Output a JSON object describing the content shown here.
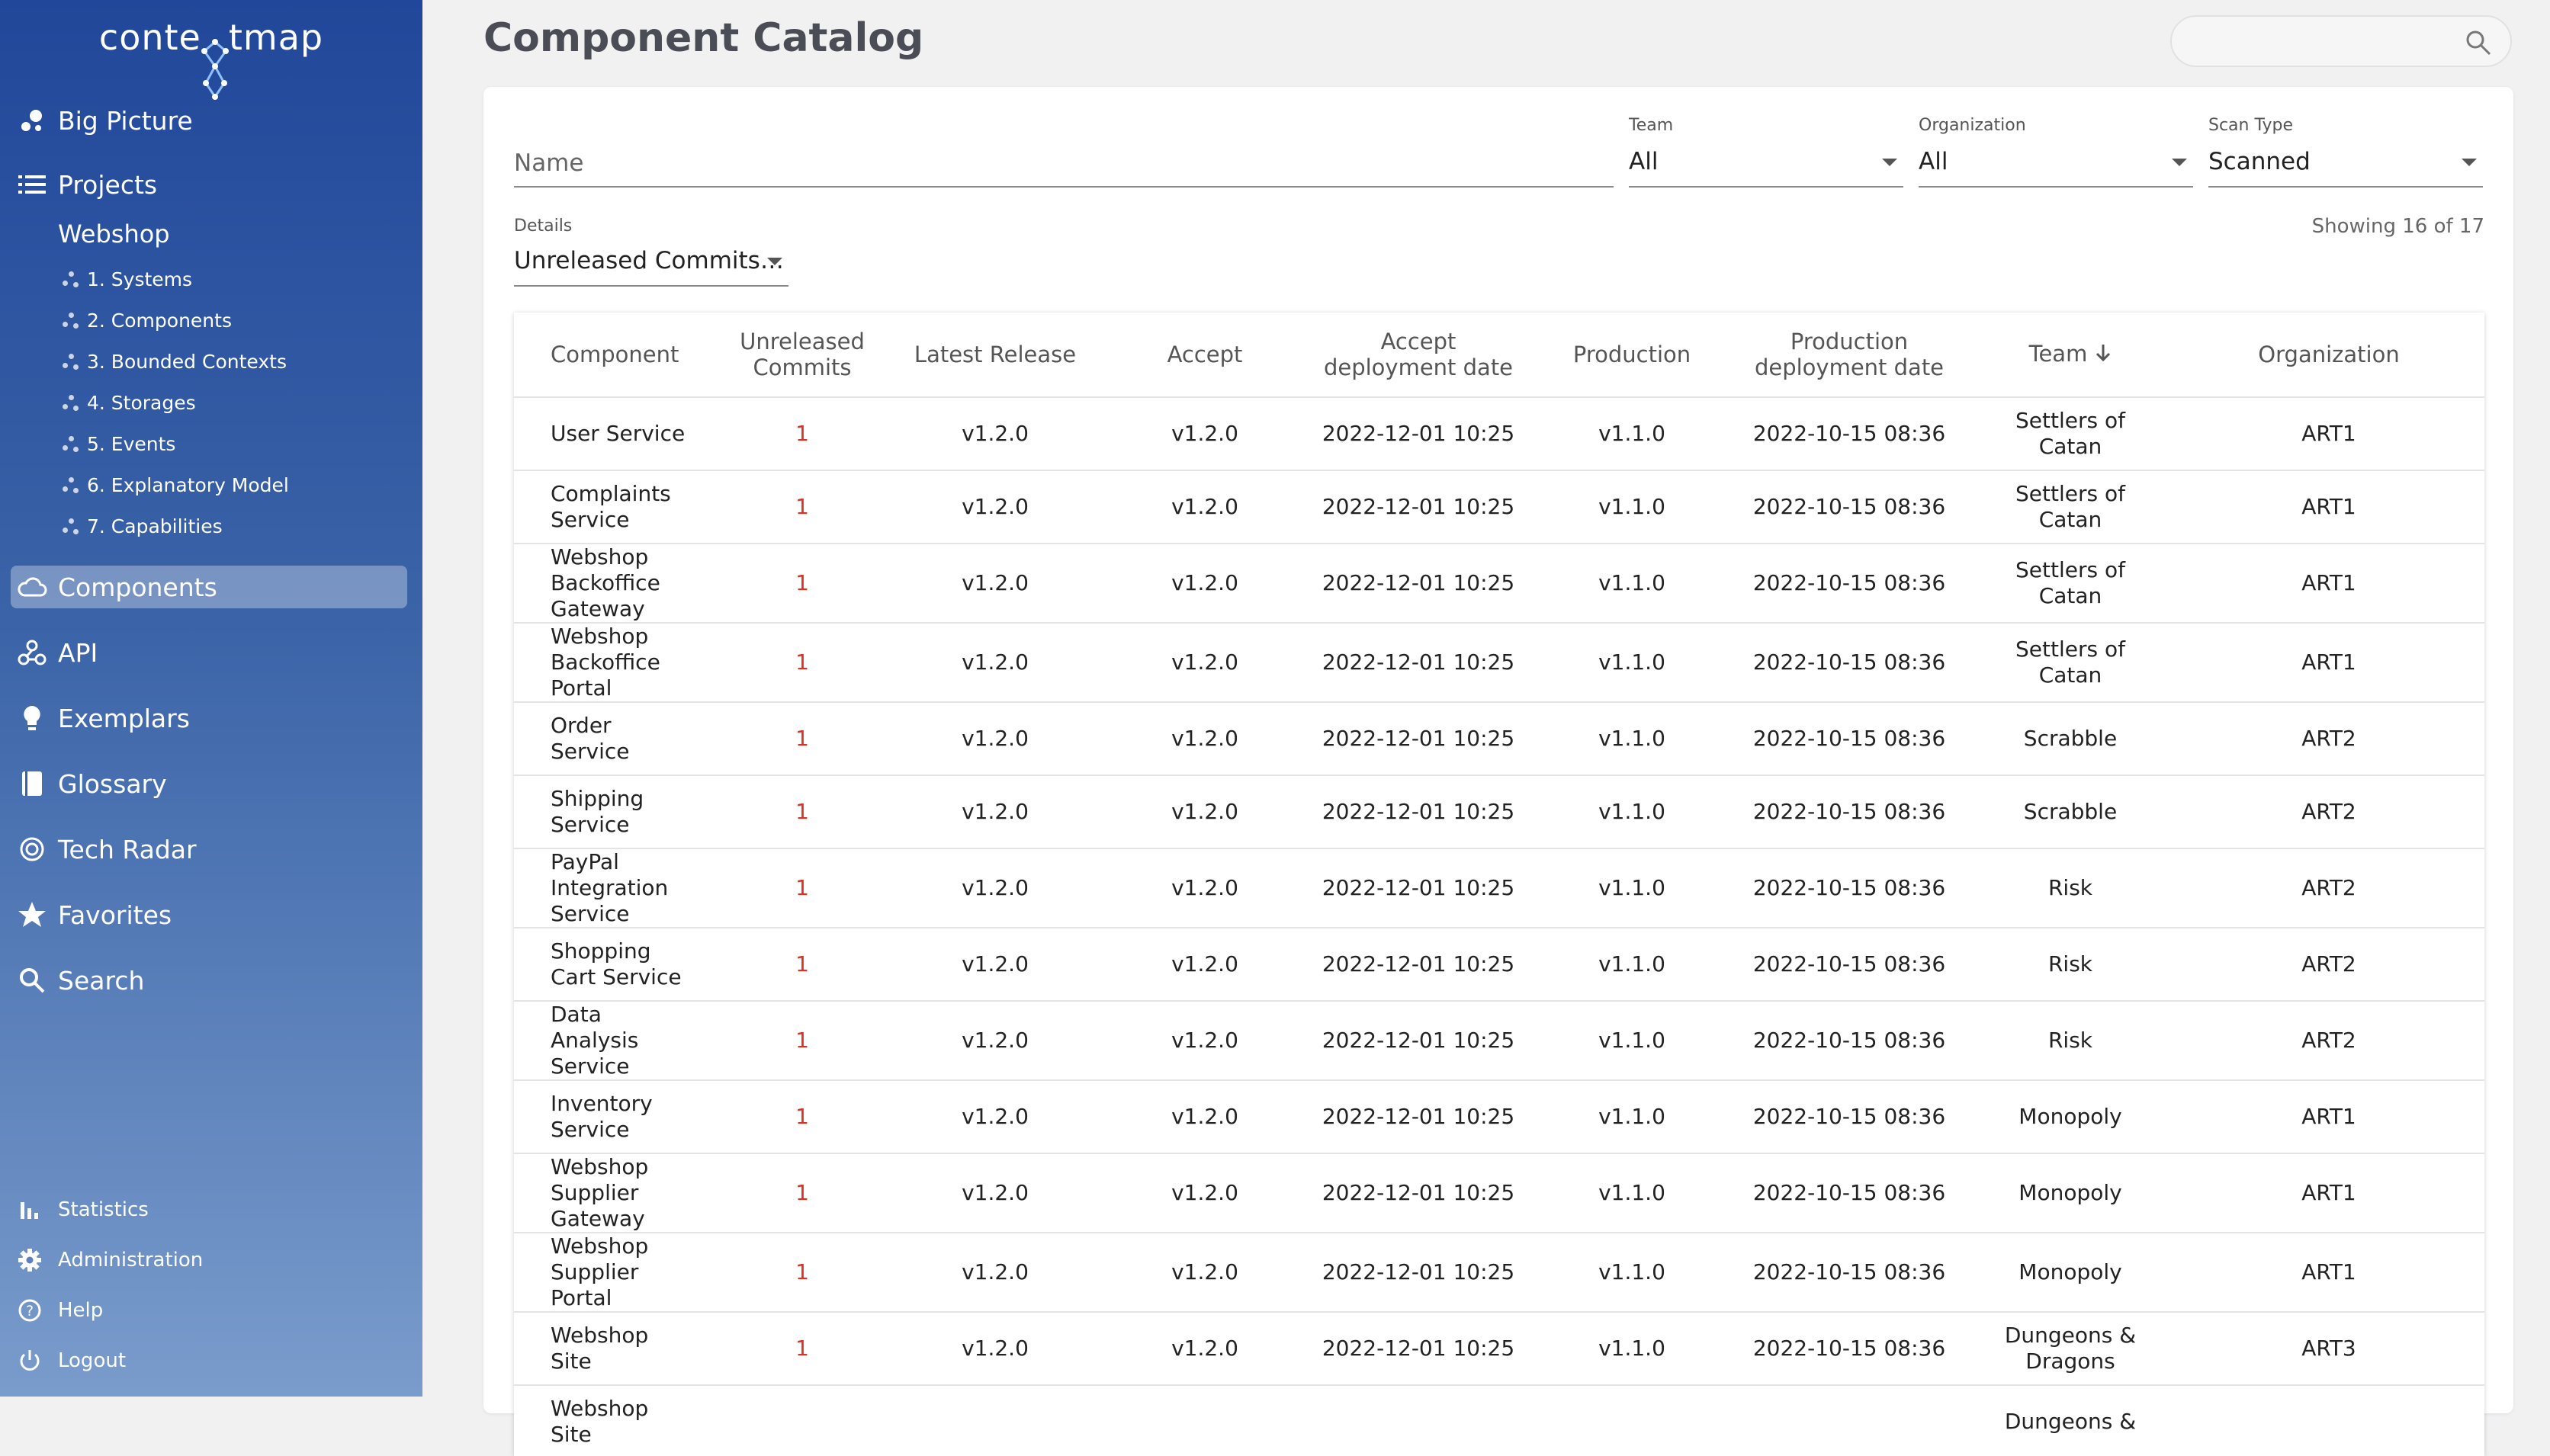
{
  "app": {
    "logo_text_left": "conte",
    "logo_text_right": "tmap"
  },
  "sidebar": {
    "big_picture": "Big Picture",
    "projects": "Projects",
    "project_name": "Webshop",
    "sub_items": [
      "1. Systems",
      "2. Components",
      "3. Bounded Contexts",
      "4. Storages",
      "5. Events",
      "6. Explanatory Model",
      "7. Capabilities"
    ],
    "components": "Components",
    "api": "API",
    "exemplars": "Exemplars",
    "glossary": "Glossary",
    "tech_radar": "Tech Radar",
    "favorites": "Favorites",
    "search": "Search",
    "statistics": "Statistics",
    "administration": "Administration",
    "help": "Help",
    "logout": "Logout"
  },
  "header": {
    "title": "Component Catalog",
    "search_placeholder": ""
  },
  "filters": {
    "name_placeholder": "Name",
    "team_label": "Team",
    "team_value": "All",
    "organization_label": "Organization",
    "organization_value": "All",
    "scan_type_label": "Scan Type",
    "scan_type_value": "Scanned",
    "details_label": "Details",
    "details_value": "Unreleased Commits…",
    "showing": "Showing 16 of 17"
  },
  "table": {
    "columns": {
      "component": "Component",
      "unreleased_1": "Unreleased",
      "unreleased_2": "Commits",
      "latest_release": "Latest Release",
      "accept": "Accept",
      "accept_date_1": "Accept",
      "accept_date_2": "deployment date",
      "production": "Production",
      "prod_date_1": "Production",
      "prod_date_2": "deployment date",
      "team": "Team",
      "organization": "Organization"
    },
    "rows": [
      {
        "component": "User Service",
        "commits": "1",
        "latest": "v1.2.0",
        "accept": "v1.2.0",
        "accept_date": "2022-12-01 10:25",
        "production": "v1.1.0",
        "prod_date": "2022-10-15 08:36",
        "team": "Settlers of Catan",
        "org": "ART1"
      },
      {
        "component": "Complaints Service",
        "commits": "1",
        "latest": "v1.2.0",
        "accept": "v1.2.0",
        "accept_date": "2022-12-01 10:25",
        "production": "v1.1.0",
        "prod_date": "2022-10-15 08:36",
        "team": "Settlers of Catan",
        "org": "ART1"
      },
      {
        "component": "Webshop Backoffice Gateway",
        "commits": "1",
        "latest": "v1.2.0",
        "accept": "v1.2.0",
        "accept_date": "2022-12-01 10:25",
        "production": "v1.1.0",
        "prod_date": "2022-10-15 08:36",
        "team": "Settlers of Catan",
        "org": "ART1"
      },
      {
        "component": "Webshop Backoffice Portal",
        "commits": "1",
        "latest": "v1.2.0",
        "accept": "v1.2.0",
        "accept_date": "2022-12-01 10:25",
        "production": "v1.1.0",
        "prod_date": "2022-10-15 08:36",
        "team": "Settlers of Catan",
        "org": "ART1"
      },
      {
        "component": "Order Service",
        "commits": "1",
        "latest": "v1.2.0",
        "accept": "v1.2.0",
        "accept_date": "2022-12-01 10:25",
        "production": "v1.1.0",
        "prod_date": "2022-10-15 08:36",
        "team": "Scrabble",
        "org": "ART2"
      },
      {
        "component": "Shipping Service",
        "commits": "1",
        "latest": "v1.2.0",
        "accept": "v1.2.0",
        "accept_date": "2022-12-01 10:25",
        "production": "v1.1.0",
        "prod_date": "2022-10-15 08:36",
        "team": "Scrabble",
        "org": "ART2"
      },
      {
        "component": "PayPal Integration Service",
        "commits": "1",
        "latest": "v1.2.0",
        "accept": "v1.2.0",
        "accept_date": "2022-12-01 10:25",
        "production": "v1.1.0",
        "prod_date": "2022-10-15 08:36",
        "team": "Risk",
        "org": "ART2"
      },
      {
        "component": "Shopping Cart Service",
        "commits": "1",
        "latest": "v1.2.0",
        "accept": "v1.2.0",
        "accept_date": "2022-12-01 10:25",
        "production": "v1.1.0",
        "prod_date": "2022-10-15 08:36",
        "team": "Risk",
        "org": "ART2"
      },
      {
        "component": "Data Analysis Service",
        "commits": "1",
        "latest": "v1.2.0",
        "accept": "v1.2.0",
        "accept_date": "2022-12-01 10:25",
        "production": "v1.1.0",
        "prod_date": "2022-10-15 08:36",
        "team": "Risk",
        "org": "ART2"
      },
      {
        "component": "Inventory Service",
        "commits": "1",
        "latest": "v1.2.0",
        "accept": "v1.2.0",
        "accept_date": "2022-12-01 10:25",
        "production": "v1.1.0",
        "prod_date": "2022-10-15 08:36",
        "team": "Monopoly",
        "org": "ART1"
      },
      {
        "component": "Webshop Supplier Gateway",
        "commits": "1",
        "latest": "v1.2.0",
        "accept": "v1.2.0",
        "accept_date": "2022-12-01 10:25",
        "production": "v1.1.0",
        "prod_date": "2022-10-15 08:36",
        "team": "Monopoly",
        "org": "ART1"
      },
      {
        "component": "Webshop Supplier Portal",
        "commits": "1",
        "latest": "v1.2.0",
        "accept": "v1.2.0",
        "accept_date": "2022-12-01 10:25",
        "production": "v1.1.0",
        "prod_date": "2022-10-15 08:36",
        "team": "Monopoly",
        "org": "ART1"
      },
      {
        "component": "Webshop Site",
        "commits": "1",
        "latest": "v1.2.0",
        "accept": "v1.2.0",
        "accept_date": "2022-12-01 10:25",
        "production": "v1.1.0",
        "prod_date": "2022-10-15 08:36",
        "team": "Dungeons & Dragons",
        "org": "ART3"
      },
      {
        "component": "Webshop Site",
        "commits": "",
        "latest": "",
        "accept": "",
        "accept_date": "",
        "production": "",
        "prod_date": "",
        "team": "Dungeons &",
        "org": ""
      }
    ]
  },
  "colors": {
    "sidebar_top": "#21479a",
    "sidebar_bottom": "#7a9ccc",
    "commit_red": "#d03526",
    "title_gray": "#4a4d55"
  }
}
